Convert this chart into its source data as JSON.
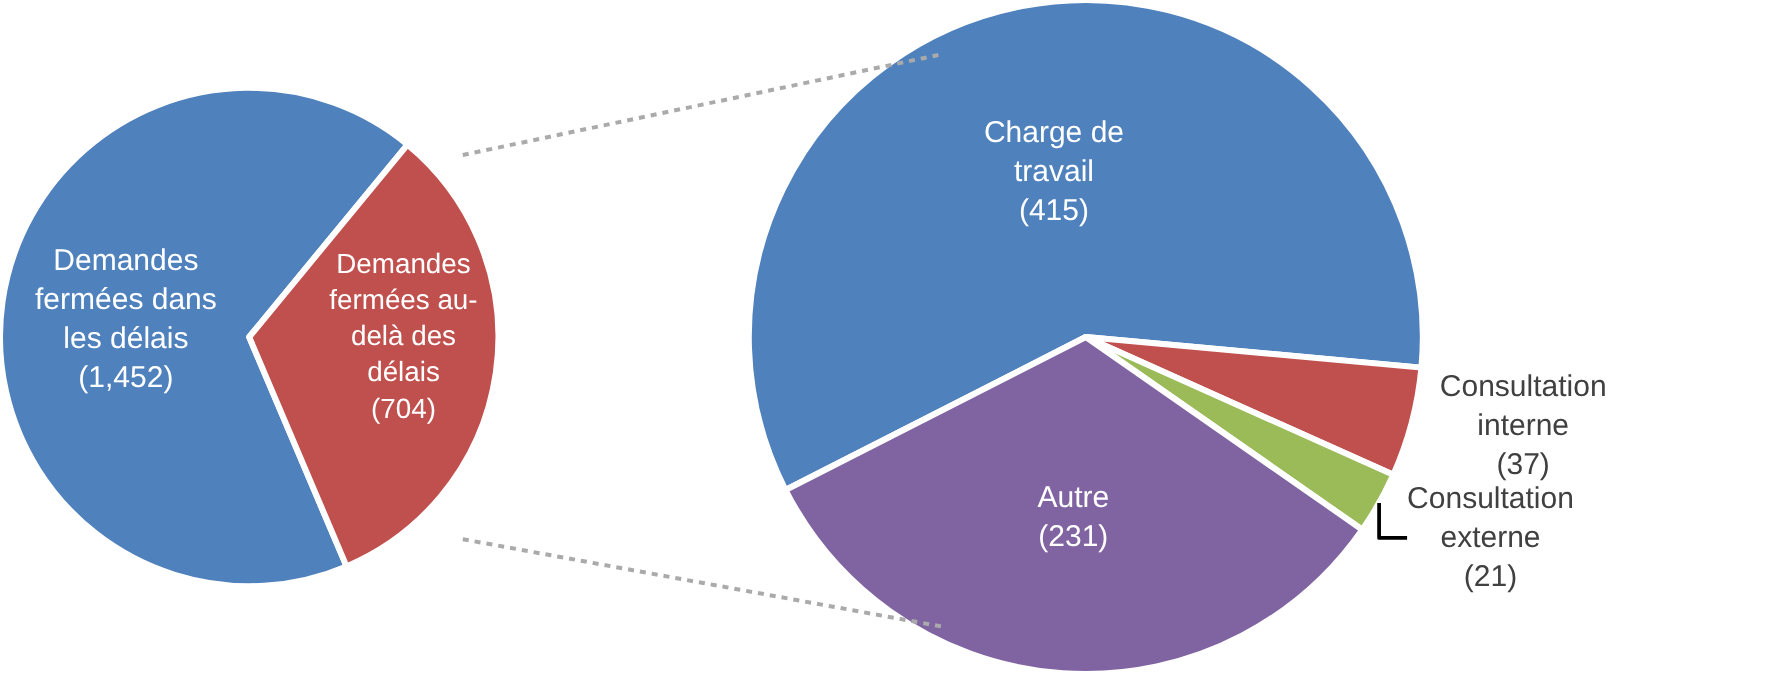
{
  "chart_data": [
    {
      "type": "pie",
      "categories": [
        "Demandes fermées dans les délais",
        "Demandes fermées au-delà des délais"
      ],
      "values": [
        1452,
        704
      ],
      "colors": [
        "#4f81bd",
        "#c0504d"
      ],
      "value_labels": [
        "(1,452)",
        "(704)"
      ]
    },
    {
      "type": "pie",
      "categories": [
        "Charge de travail",
        "Consultation interne",
        "Consultation externe",
        "Autre"
      ],
      "values": [
        415,
        37,
        21,
        231
      ],
      "colors": [
        "#4f81bd",
        "#c0504d",
        "#9bbb59",
        "#8064a2"
      ],
      "value_labels": [
        "(415)",
        "(37)",
        "(21)",
        "(231)"
      ]
    }
  ]
}
